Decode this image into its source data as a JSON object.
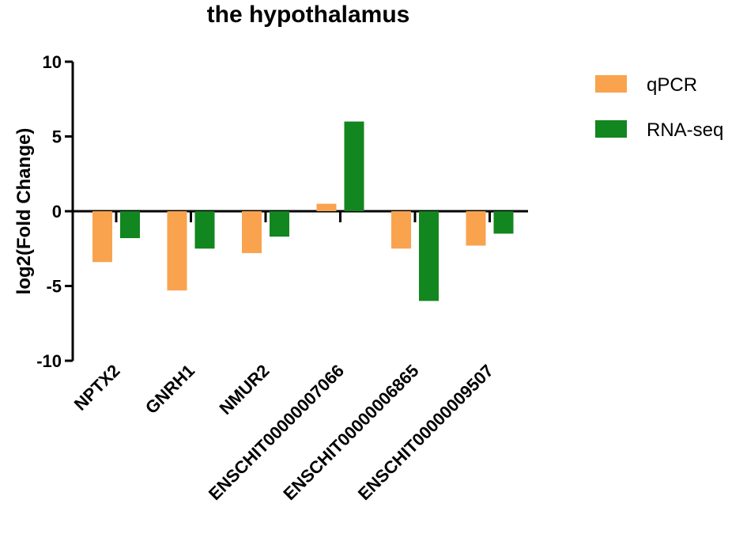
{
  "chart_data": {
    "type": "bar",
    "title": "the hypothalamus",
    "ylabel": "log2(Fold Change)",
    "xlabel": "",
    "ylim": [
      -10,
      10
    ],
    "yticks": [
      10,
      5,
      0,
      -5,
      -10
    ],
    "categories": [
      "NPTX2",
      "GNRH1",
      "NMUR2",
      "ENSCHIT00000007066",
      "ENSCHIT00000006865",
      "ENSCHIT00000009507"
    ],
    "series": [
      {
        "name": "qPCR",
        "color": "#f9a34f",
        "values": [
          -3.4,
          -5.3,
          -2.8,
          0.5,
          -2.5,
          -2.3
        ]
      },
      {
        "name": "RNA-seq",
        "color": "#12861f",
        "values": [
          -1.8,
          -2.5,
          -1.7,
          6.0,
          -6.0,
          -1.5
        ]
      }
    ],
    "legend": "right"
  }
}
